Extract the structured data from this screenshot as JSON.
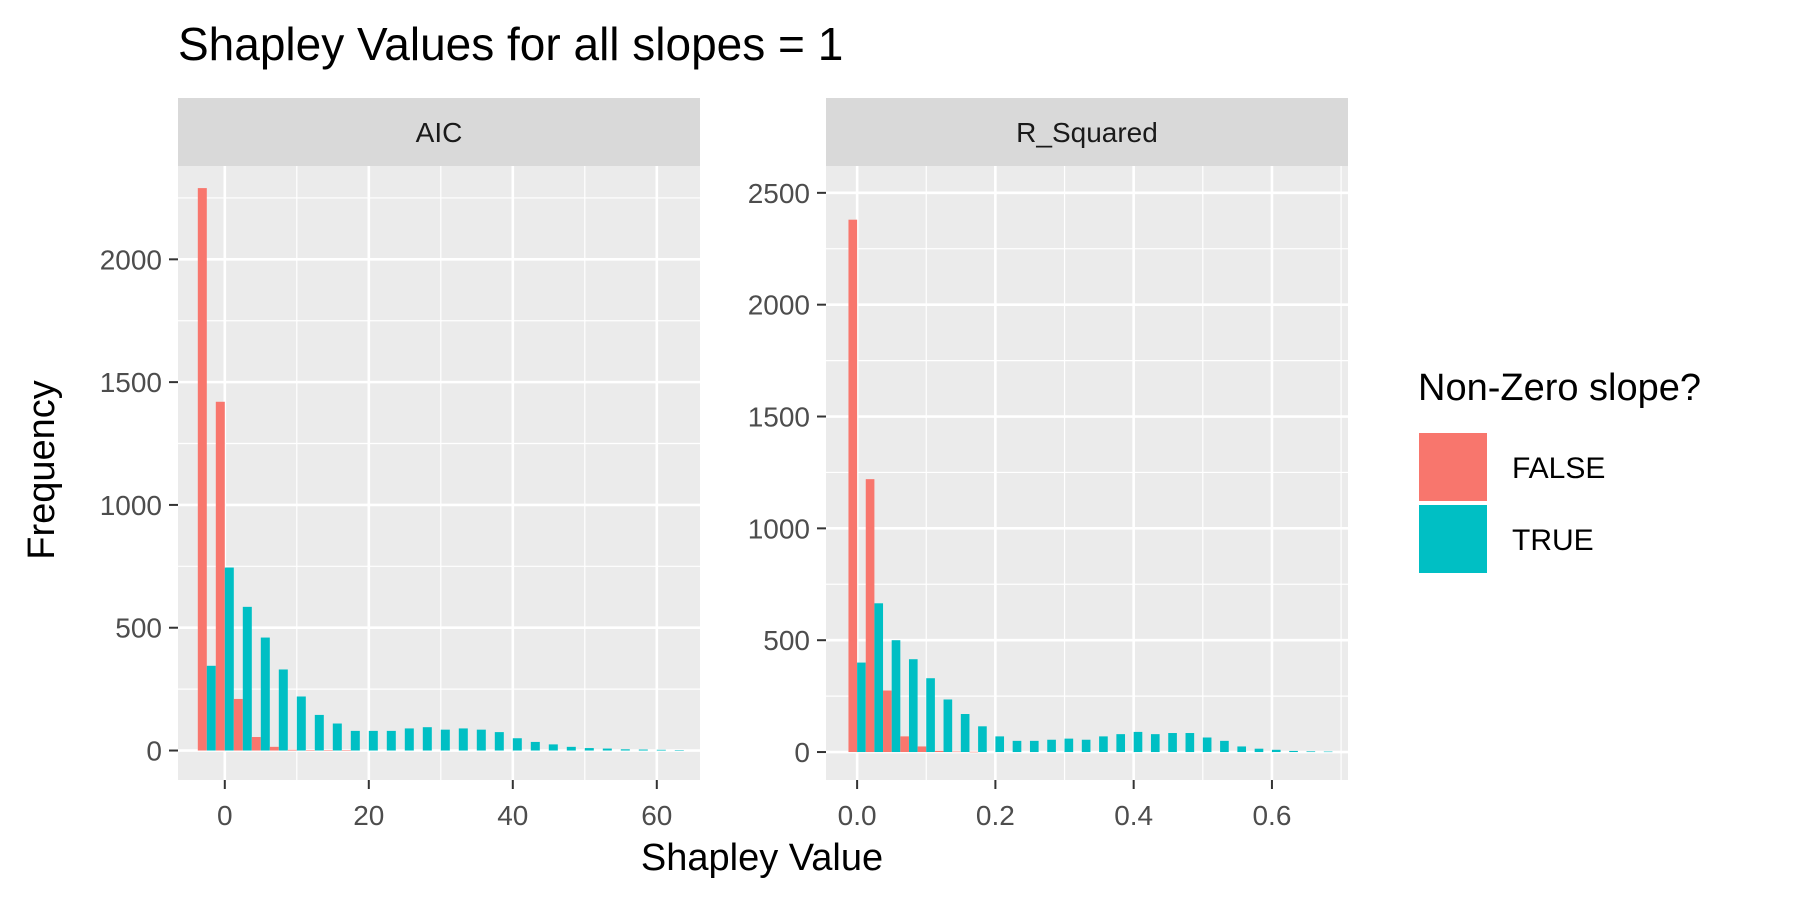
{
  "chart_data": {
    "type": "bar",
    "title": "Shapley Values for all slopes = 1",
    "xlabel": "Shapley Value",
    "ylabel": "Frequency",
    "legend": {
      "title": "Non-Zero slope?",
      "position": "right",
      "entries": [
        {
          "label": "FALSE",
          "color": "#F8766D"
        },
        {
          "label": "TRUE",
          "color": "#00BFC4"
        }
      ]
    },
    "grid": true,
    "panels": [
      {
        "strip": "AIC",
        "xlim": [
          -6.5,
          66
        ],
        "ylim": [
          -120,
          2380
        ],
        "x_ticks": [
          0,
          20,
          40,
          60
        ],
        "x_tick_labels": [
          "0",
          "20",
          "40",
          "60"
        ],
        "y_ticks": [
          0,
          500,
          1000,
          1500,
          2000
        ],
        "y_tick_labels": [
          "0",
          "500",
          "1000",
          "1500",
          "2000"
        ],
        "bin_width": 2.5,
        "x": [
          -2.5,
          0,
          2.5,
          5,
          7.5,
          10,
          12.5,
          15,
          17.5,
          20,
          22.5,
          25,
          27.5,
          30,
          32.5,
          35,
          37.5,
          40,
          42.5,
          45,
          47.5,
          50,
          52.5,
          55,
          57.5,
          60,
          62.5
        ],
        "series": [
          {
            "name": "FALSE",
            "values": [
              2290,
              1420,
              210,
              55,
              15,
              3,
              2,
              1,
              1,
              0,
              0,
              0,
              0,
              0,
              0,
              0,
              0,
              0,
              0,
              0,
              0,
              0,
              0,
              0,
              0,
              0,
              0
            ]
          },
          {
            "name": "TRUE",
            "values": [
              345,
              745,
              585,
              460,
              330,
              220,
              145,
              110,
              80,
              80,
              80,
              90,
              95,
              85,
              90,
              85,
              75,
              50,
              35,
              25,
              15,
              10,
              8,
              5,
              4,
              3,
              2
            ]
          }
        ]
      },
      {
        "strip": "R_Squared",
        "xlim": [
          -0.045,
          0.71
        ],
        "ylim": [
          -125,
          2620
        ],
        "x_ticks": [
          0,
          0.2,
          0.4,
          0.6
        ],
        "x_tick_labels": [
          "0.0",
          "0.2",
          "0.4",
          "0.6"
        ],
        "y_ticks": [
          0,
          500,
          1000,
          1500,
          2000,
          2500
        ],
        "y_tick_labels": [
          "0",
          "500",
          "1000",
          "1500",
          "2000",
          "2500"
        ],
        "bin_width": 0.025,
        "x": [
          0,
          0.025,
          0.05,
          0.075,
          0.1,
          0.125,
          0.15,
          0.175,
          0.2,
          0.225,
          0.25,
          0.275,
          0.3,
          0.325,
          0.35,
          0.375,
          0.4,
          0.425,
          0.45,
          0.475,
          0.5,
          0.525,
          0.55,
          0.575,
          0.6,
          0.625,
          0.65,
          0.675
        ],
        "series": [
          {
            "name": "FALSE",
            "values": [
              2380,
              1220,
              275,
              70,
              25,
              5,
              2,
              1,
              0,
              0,
              0,
              0,
              0,
              0,
              0,
              0,
              0,
              0,
              0,
              0,
              0,
              0,
              0,
              0,
              0,
              0,
              0,
              0
            ]
          },
          {
            "name": "TRUE",
            "values": [
              400,
              665,
              500,
              415,
              330,
              235,
              170,
              115,
              70,
              50,
              50,
              55,
              60,
              55,
              70,
              80,
              90,
              80,
              85,
              85,
              65,
              50,
              25,
              15,
              10,
              5,
              3,
              2
            ]
          }
        ]
      }
    ]
  }
}
